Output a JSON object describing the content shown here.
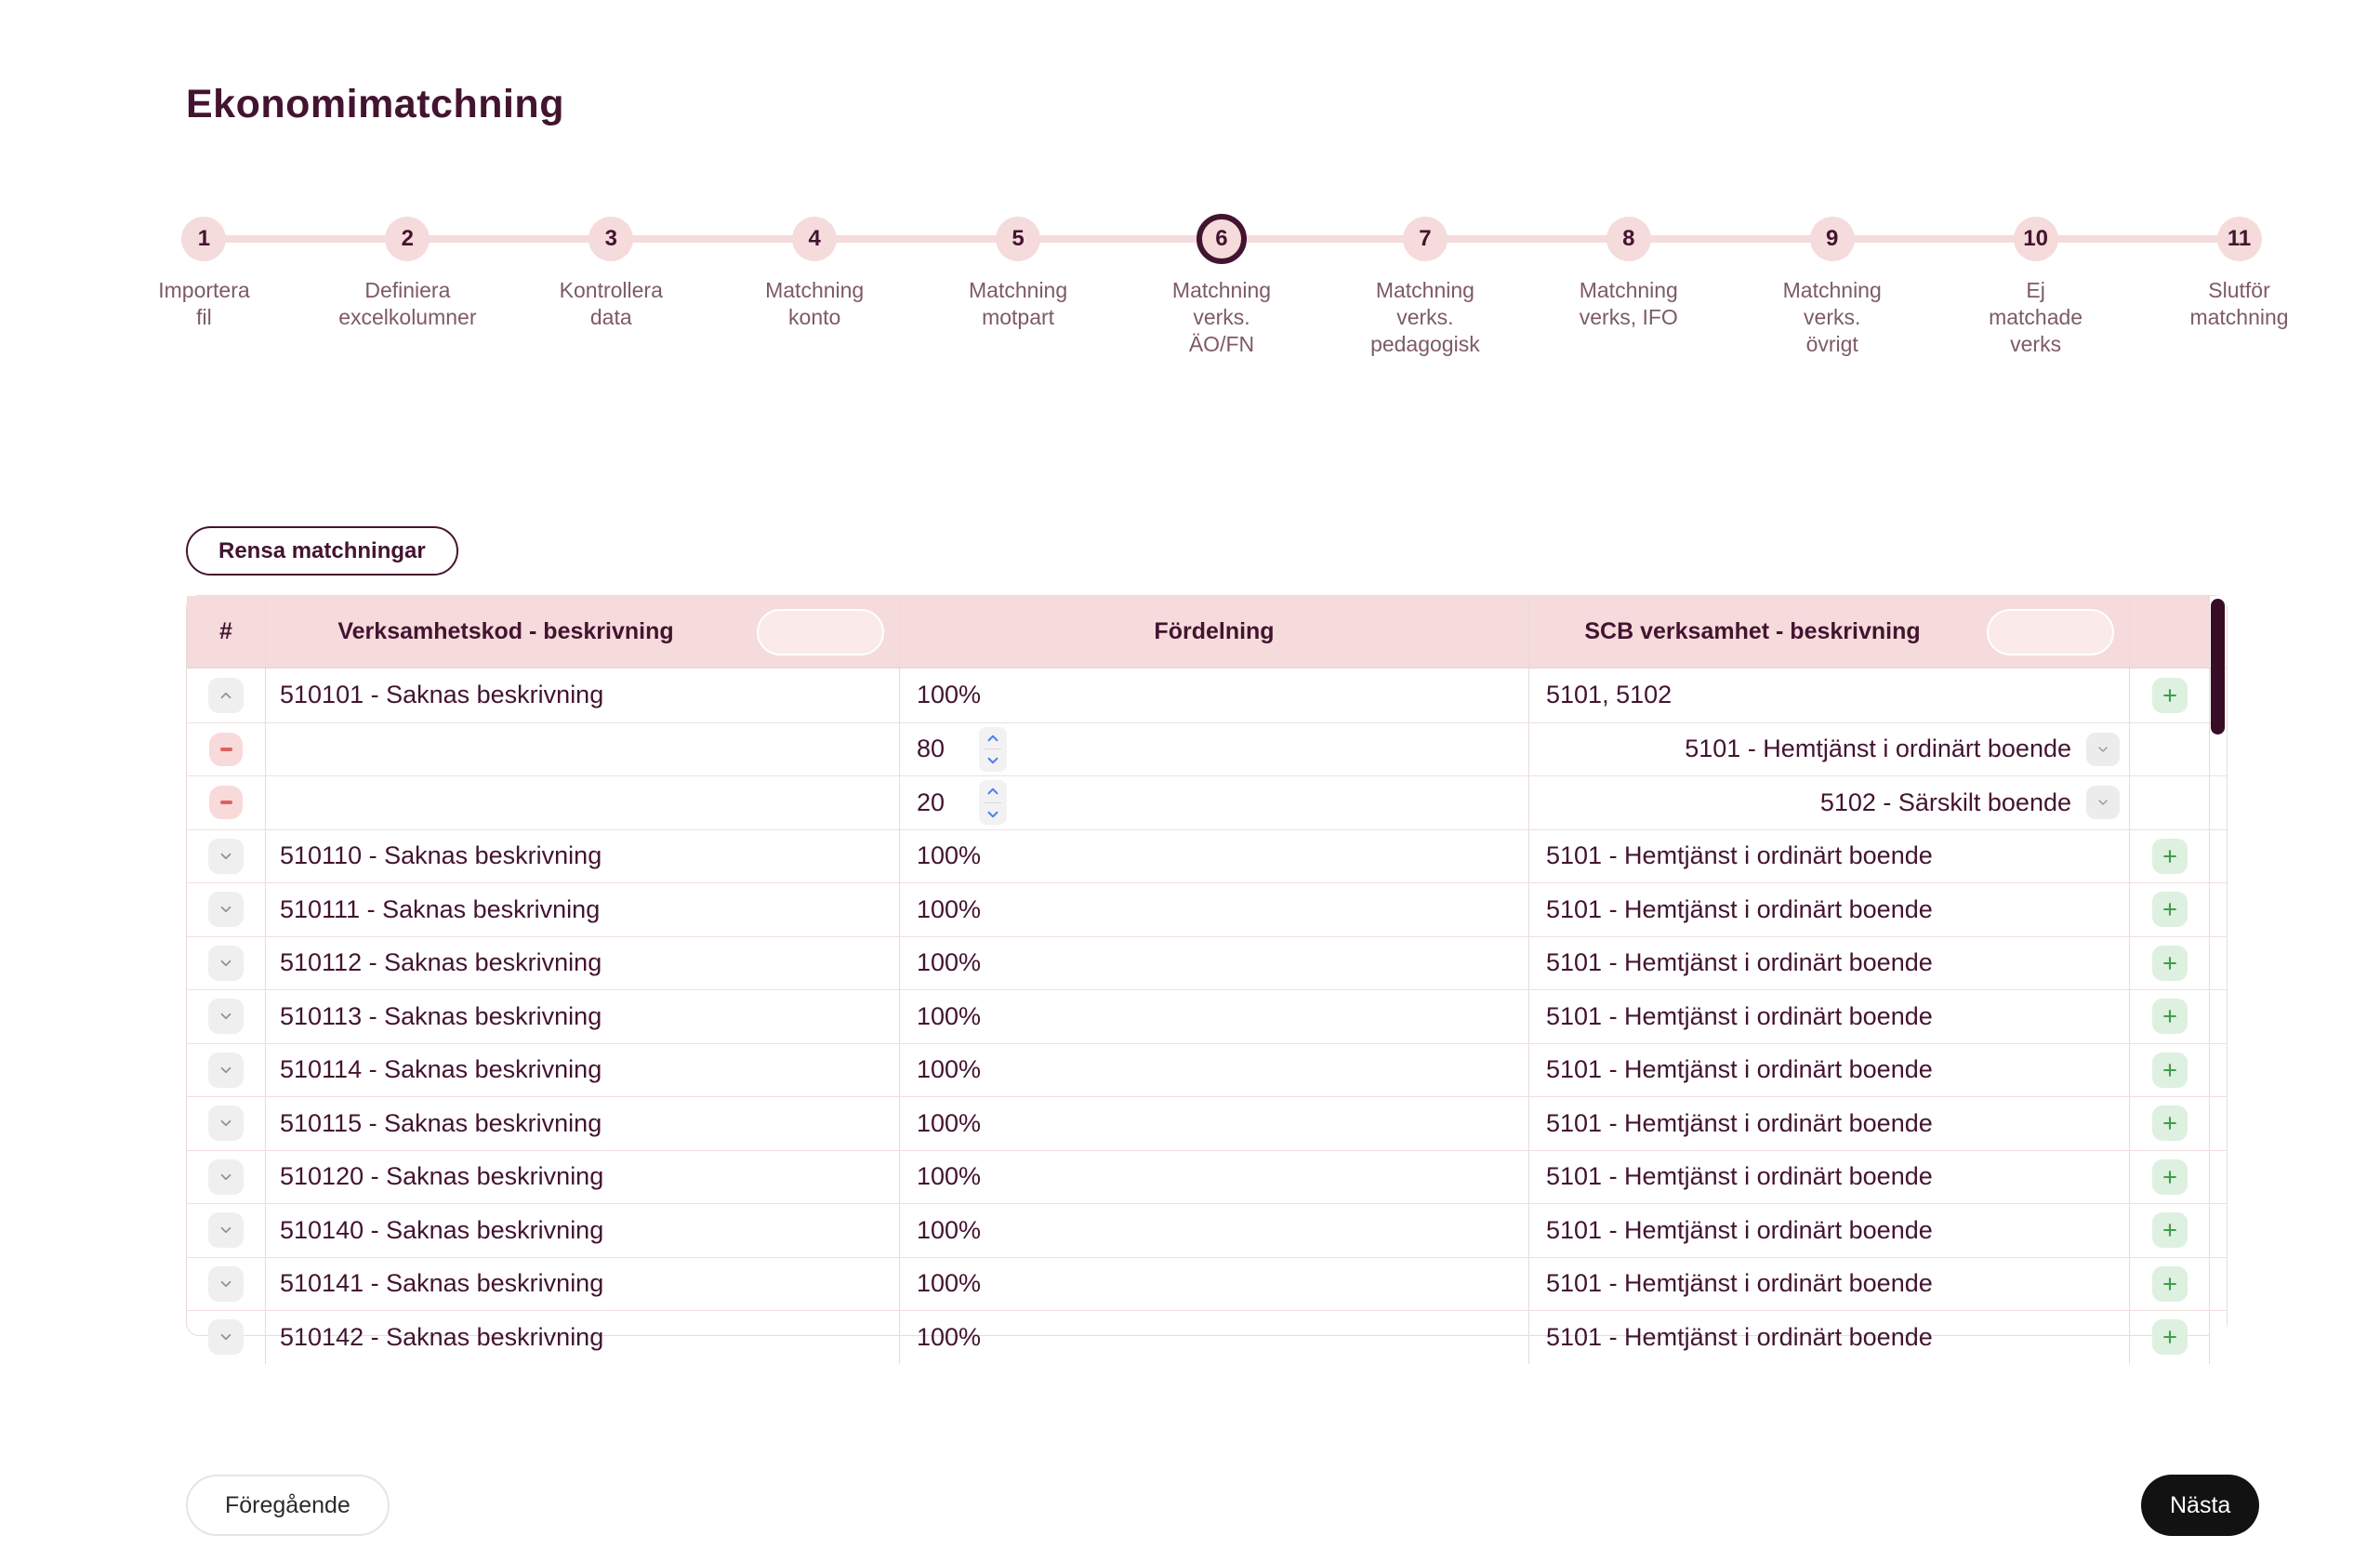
{
  "page": {
    "title": "Ekonomimatchning"
  },
  "stepper": {
    "active_step": 6,
    "steps": [
      {
        "num": "1",
        "lines": [
          "Importera",
          "fil"
        ]
      },
      {
        "num": "2",
        "lines": [
          "Definiera",
          "excelkolumner"
        ]
      },
      {
        "num": "3",
        "lines": [
          "Kontrollera",
          "data"
        ]
      },
      {
        "num": "4",
        "lines": [
          "Matchning",
          "konto"
        ]
      },
      {
        "num": "5",
        "lines": [
          "Matchning",
          "motpart"
        ]
      },
      {
        "num": "6",
        "lines": [
          "Matchning",
          "verks.",
          "ÄO/FN"
        ]
      },
      {
        "num": "7",
        "lines": [
          "Matchning",
          "verks.",
          "pedagogisk"
        ]
      },
      {
        "num": "8",
        "lines": [
          "Matchning",
          "verks, IFO"
        ]
      },
      {
        "num": "9",
        "lines": [
          "Matchning",
          "verks.",
          "övrigt"
        ]
      },
      {
        "num": "10",
        "lines": [
          "Ej",
          "matchade",
          "verks"
        ]
      },
      {
        "num": "11",
        "lines": [
          "Slutför",
          "matchning"
        ]
      }
    ]
  },
  "toolbar": {
    "clear_button": "Rensa matchningar"
  },
  "table": {
    "headers": {
      "index": "#",
      "verksamhetskod": "Verksamhetskod - beskrivning",
      "fordelning": "Fördelning",
      "scb": "SCB verksamhet - beskrivning"
    },
    "rows": [
      {
        "kind": "expanded",
        "toggle": "collapse",
        "code": "510101 - Saknas beskrivning",
        "share": "100%",
        "spinner": false,
        "scb": "5101, 5102",
        "scb_align": "left",
        "dropdown": false,
        "add": true
      },
      {
        "kind": "sub",
        "toggle": "remove",
        "code": "",
        "share": "80",
        "spinner": true,
        "scb": "5101 - Hemtjänst i ordinärt boende",
        "scb_align": "right",
        "dropdown": true,
        "add": false
      },
      {
        "kind": "sub",
        "toggle": "remove",
        "code": "",
        "share": "20",
        "spinner": true,
        "scb": "5102 - Särskilt boende",
        "scb_align": "right",
        "dropdown": true,
        "add": false
      },
      {
        "kind": "collapsed",
        "toggle": "expand",
        "code": "510110 - Saknas beskrivning",
        "share": "100%",
        "spinner": false,
        "scb": "5101 - Hemtjänst i ordinärt boende",
        "scb_align": "left",
        "dropdown": false,
        "add": true
      },
      {
        "kind": "collapsed",
        "toggle": "expand",
        "code": "510111 - Saknas beskrivning",
        "share": "100%",
        "spinner": false,
        "scb": "5101 - Hemtjänst i ordinärt boende",
        "scb_align": "left",
        "dropdown": false,
        "add": true
      },
      {
        "kind": "collapsed",
        "toggle": "expand",
        "code": "510112 - Saknas beskrivning",
        "share": "100%",
        "spinner": false,
        "scb": "5101 - Hemtjänst i ordinärt boende",
        "scb_align": "left",
        "dropdown": false,
        "add": true
      },
      {
        "kind": "collapsed",
        "toggle": "expand",
        "code": "510113 - Saknas beskrivning",
        "share": "100%",
        "spinner": false,
        "scb": "5101 - Hemtjänst i ordinärt boende",
        "scb_align": "left",
        "dropdown": false,
        "add": true
      },
      {
        "kind": "collapsed",
        "toggle": "expand",
        "code": "510114 - Saknas beskrivning",
        "share": "100%",
        "spinner": false,
        "scb": "5101 - Hemtjänst i ordinärt boende",
        "scb_align": "left",
        "dropdown": false,
        "add": true
      },
      {
        "kind": "collapsed",
        "toggle": "expand",
        "code": "510115 - Saknas beskrivning",
        "share": "100%",
        "spinner": false,
        "scb": "5101 - Hemtjänst i ordinärt boende",
        "scb_align": "left",
        "dropdown": false,
        "add": true
      },
      {
        "kind": "collapsed",
        "toggle": "expand",
        "code": "510120 - Saknas beskrivning",
        "share": "100%",
        "spinner": false,
        "scb": "5101 - Hemtjänst i ordinärt boende",
        "scb_align": "left",
        "dropdown": false,
        "add": true
      },
      {
        "kind": "collapsed",
        "toggle": "expand",
        "code": "510140 - Saknas beskrivning",
        "share": "100%",
        "spinner": false,
        "scb": "5101 - Hemtjänst i ordinärt boende",
        "scb_align": "left",
        "dropdown": false,
        "add": true
      },
      {
        "kind": "collapsed",
        "toggle": "expand",
        "code": "510141 - Saknas beskrivning",
        "share": "100%",
        "spinner": false,
        "scb": "5101 - Hemtjänst i ordinärt boende",
        "scb_align": "left",
        "dropdown": false,
        "add": true
      },
      {
        "kind": "collapsed",
        "toggle": "expand",
        "code": "510142 - Saknas beskrivning",
        "share": "100%",
        "spinner": false,
        "scb": "5101 - Hemtjänst i ordinärt boende",
        "scb_align": "left",
        "dropdown": false,
        "add": true
      }
    ]
  },
  "footer": {
    "prev_button": "Föregående",
    "next_button": "Nästa"
  },
  "icons": {
    "collapse": "chevron-up-icon",
    "expand": "chevron-down-icon",
    "remove": "minus-icon",
    "add": "plus-icon",
    "dropdown": "chevron-down-icon",
    "spinner_up": "chevron-up-icon",
    "spinner_down": "chevron-down-icon"
  },
  "colors": {
    "maroon": "#431430",
    "pink": "#f5dbdb",
    "pill_pink": "#fbeaea",
    "label_mauve": "#7d5a68",
    "border_pink": "#eadada",
    "blue": "#4e7ef2",
    "green": "#3e9e4a",
    "green_bg": "#def0e0",
    "red": "#e0605e",
    "red_bg": "#f9dada",
    "scroll_thumb": "#380d25",
    "next_black": "#121212"
  }
}
